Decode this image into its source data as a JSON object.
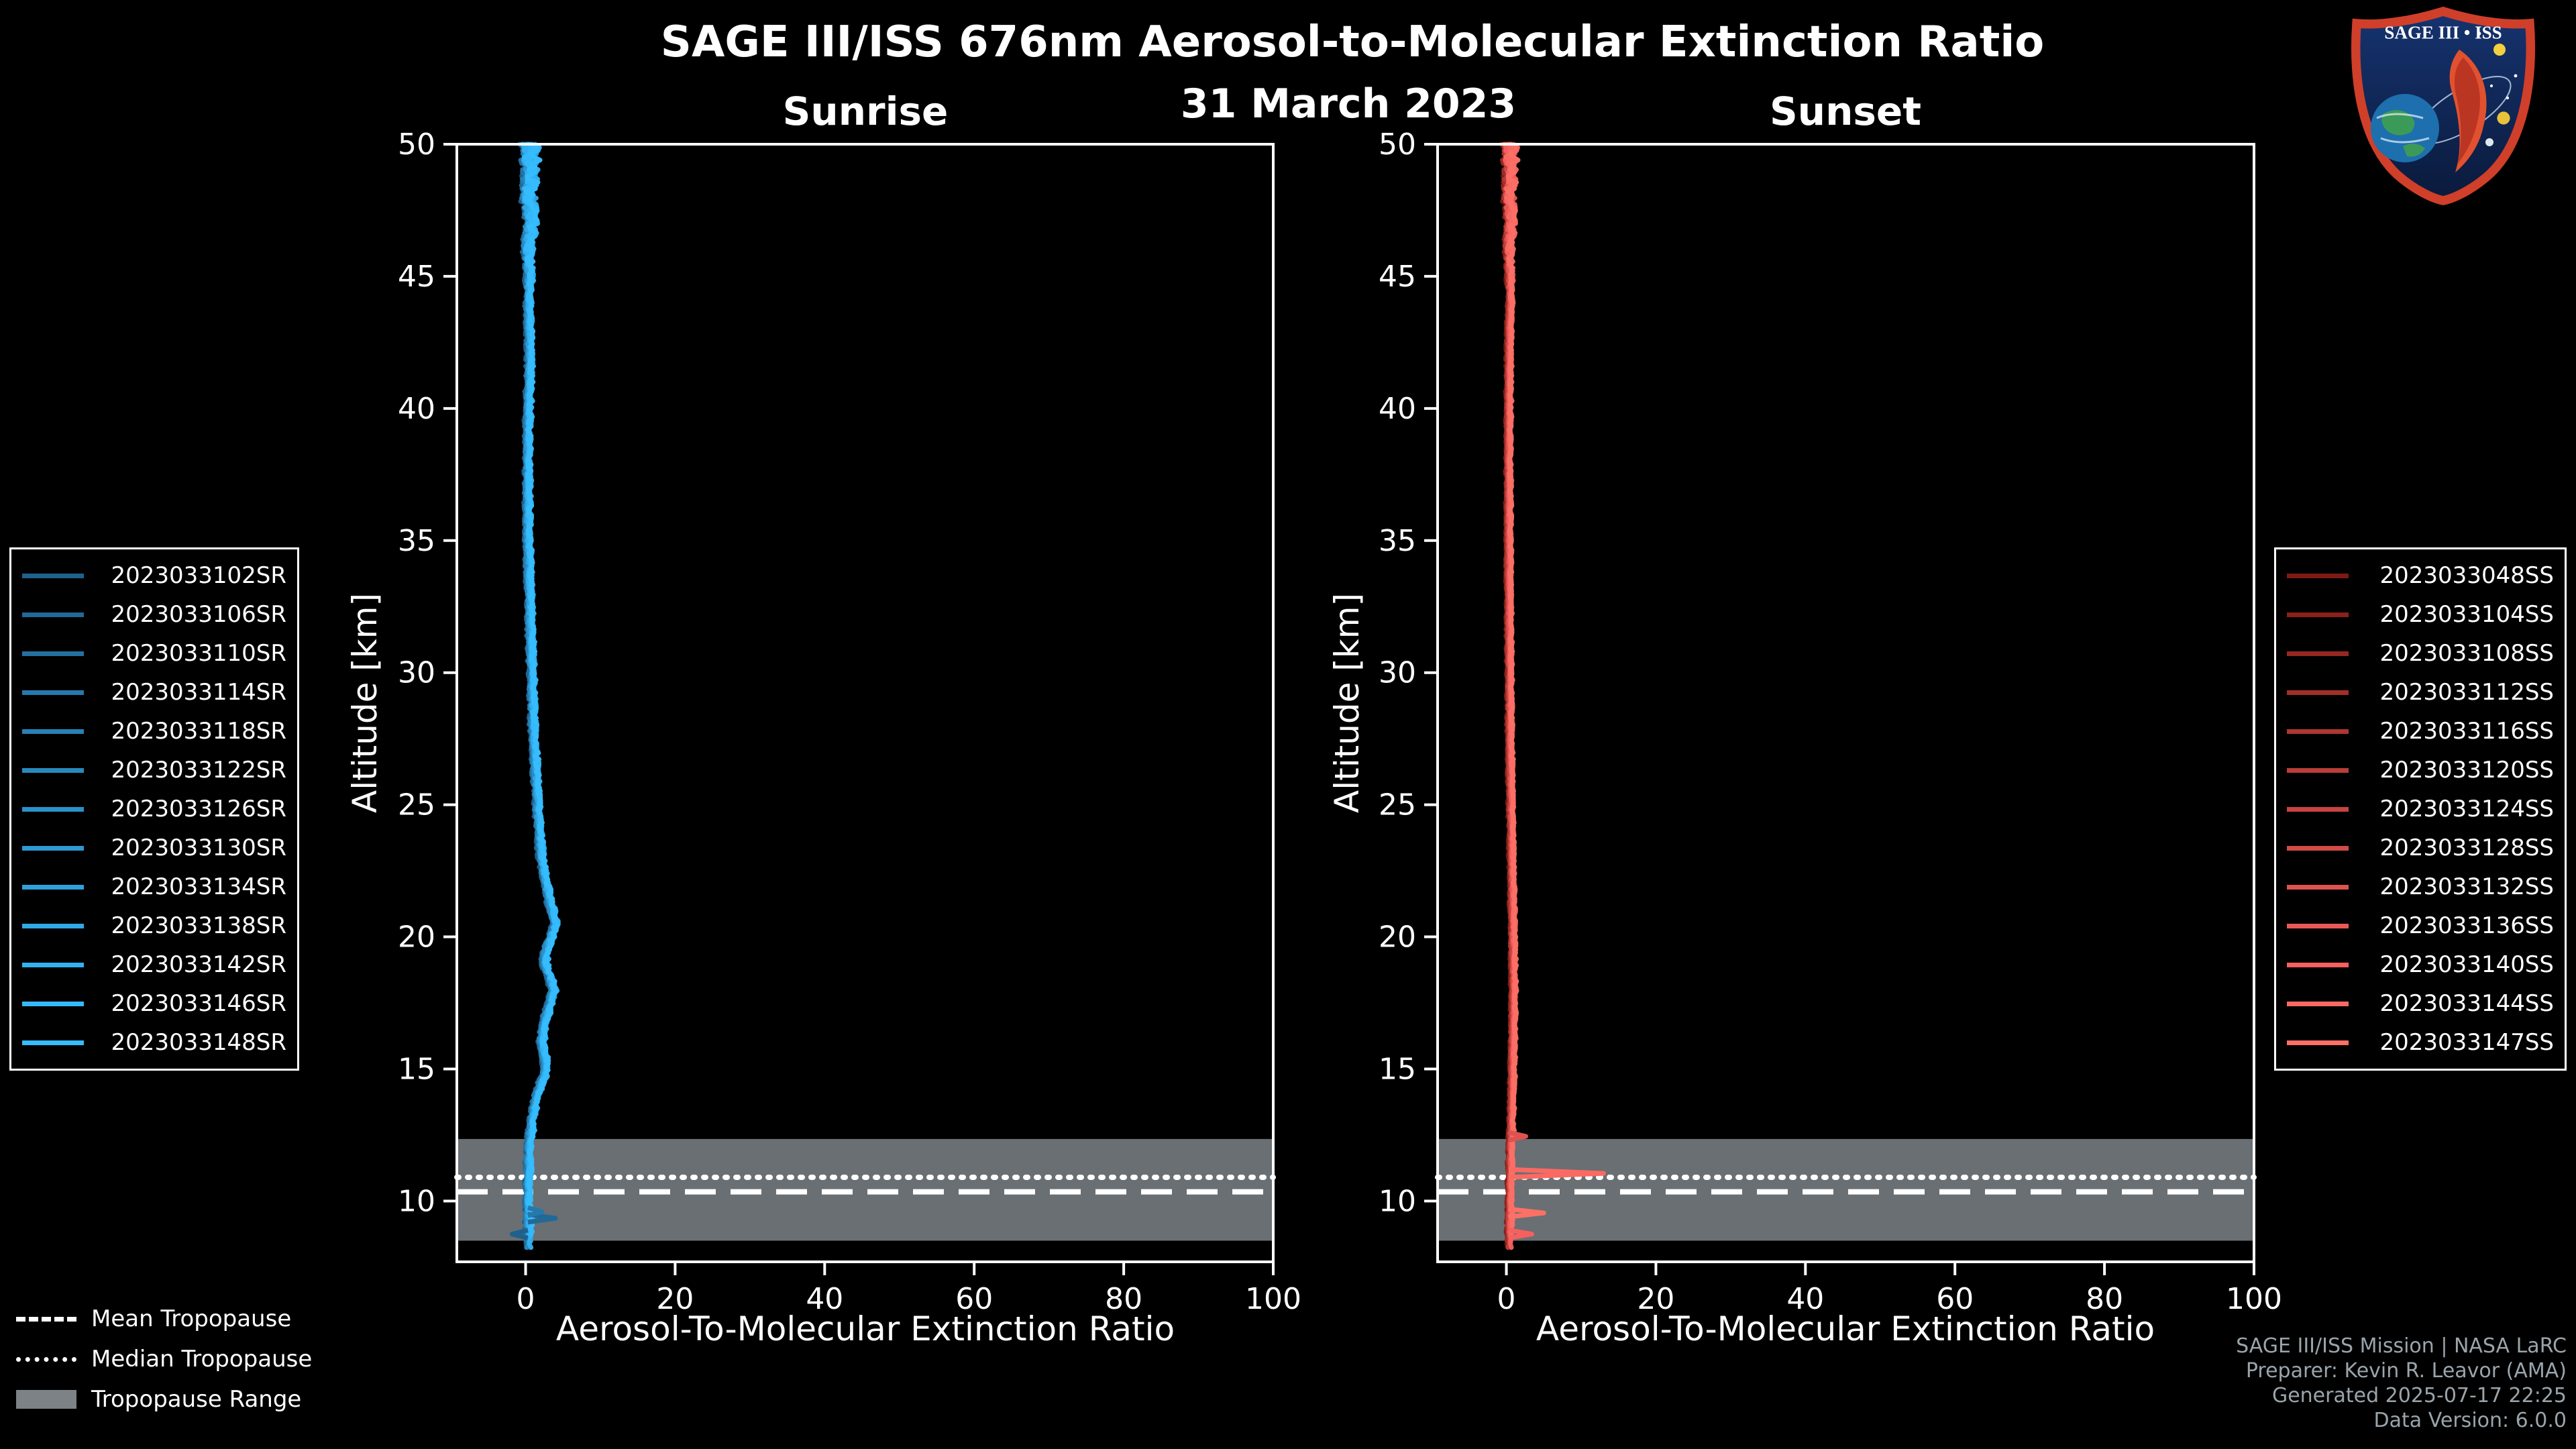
{
  "header": {
    "title": "SAGE III/ISS 676nm Aerosol-to-Molecular Extinction Ratio",
    "date": "31 March 2023"
  },
  "logo": {
    "title": "SAGE III • ISS"
  },
  "tropopause_legend": {
    "mean_label": "Mean Tropopause",
    "median_label": "Median Tropopause",
    "range_label": "Tropopause Range"
  },
  "footer": {
    "line1": "SAGE III/ISS Mission | NASA LaRC",
    "line2": "Preparer: Kevin R. Leavor (AMA)",
    "line3": "Generated 2025-07-17 22:25",
    "line4": "Data Version: 6.0.0"
  },
  "chart_data": {
    "type": "line",
    "title": "SAGE III/ISS 676nm Aerosol-to-Molecular Extinction Ratio",
    "subtitle": "31 March 2023",
    "background": "#000000",
    "text_color": "#ffffff",
    "tropopause_color": "#7d8287",
    "tropopause": {
      "mean": 10.35,
      "median": 10.9,
      "range": [
        8.5,
        12.35
      ]
    },
    "panels": [
      {
        "title": "Sunrise",
        "xlabel": "Aerosol-To-Molecular Extinction Ratio",
        "ylabel": "Altitude [km]",
        "xlim": [
          -9.2,
          100
        ],
        "ylim": [
          7.7,
          50
        ],
        "xticks": [
          0,
          20,
          40,
          60,
          80,
          100
        ],
        "yticks": [
          10,
          15,
          20,
          25,
          30,
          35,
          40,
          45,
          50
        ],
        "legend_position": "outside-left",
        "grid": false,
        "series": [
          {
            "name": "2023033102SR",
            "color": "#1f618d"
          },
          {
            "name": "2023033106SR",
            "color": "#216997"
          },
          {
            "name": "2023033110SR",
            "color": "#2371a1"
          },
          {
            "name": "2023033114SR",
            "color": "#2579ab"
          },
          {
            "name": "2023033118SR",
            "color": "#2781b5"
          },
          {
            "name": "2023033122SR",
            "color": "#2989bf"
          },
          {
            "name": "2023033126SR",
            "color": "#2b91c9"
          },
          {
            "name": "2023033130SR",
            "color": "#2d99d3"
          },
          {
            "name": "2023033134SR",
            "color": "#2fa1dd"
          },
          {
            "name": "2023033138SR",
            "color": "#31a9e7"
          },
          {
            "name": "2023033142SR",
            "color": "#33b1f1"
          },
          {
            "name": "2023033146SR",
            "color": "#35b9fb"
          },
          {
            "name": "2023033148SR",
            "color": "#36bdff"
          }
        ],
        "base_profile": [
          [
            50,
            0.5
          ],
          [
            49,
            0.7
          ],
          [
            48,
            0.4
          ],
          [
            47,
            0.7
          ],
          [
            46,
            0.3
          ],
          [
            45,
            0.5
          ],
          [
            44,
            0.35
          ],
          [
            43,
            0.5
          ],
          [
            42,
            0.55
          ],
          [
            41,
            0.45
          ],
          [
            40,
            0.35
          ],
          [
            39,
            0.3
          ],
          [
            38,
            0.3
          ],
          [
            37,
            0.25
          ],
          [
            36,
            0.3
          ],
          [
            35,
            0.3
          ],
          [
            34,
            0.4
          ],
          [
            33,
            0.5
          ],
          [
            32,
            0.6
          ],
          [
            31,
            0.7
          ],
          [
            30,
            0.8
          ],
          [
            29,
            0.9
          ],
          [
            28,
            1.0
          ],
          [
            27,
            1.2
          ],
          [
            26,
            1.4
          ],
          [
            25,
            1.6
          ],
          [
            24,
            1.8
          ],
          [
            23,
            2.1
          ],
          [
            22,
            2.7
          ],
          [
            21.5,
            3.1
          ],
          [
            21,
            3.5
          ],
          [
            20.5,
            3.9
          ],
          [
            20,
            3.4
          ],
          [
            19.5,
            2.7
          ],
          [
            19,
            2.5
          ],
          [
            18.5,
            3.2
          ],
          [
            18,
            3.7
          ],
          [
            17.5,
            3.3
          ],
          [
            17,
            2.7
          ],
          [
            16.5,
            2.3
          ],
          [
            16,
            2.1
          ],
          [
            15.5,
            2.5
          ],
          [
            15,
            2.7
          ],
          [
            14.5,
            2.1
          ],
          [
            14,
            1.5
          ],
          [
            13.5,
            1.1
          ],
          [
            13,
            0.8
          ],
          [
            12.5,
            0.6
          ],
          [
            12,
            0.45
          ],
          [
            11,
            0.35
          ],
          [
            10,
            0.3
          ],
          [
            9,
            0.4
          ],
          [
            8.2,
            0.4
          ]
        ],
        "noise": {
          "base": 0.28,
          "top_extra": 0.9
        },
        "spikes": [
          {
            "series": 1,
            "altitude": 9.35,
            "value": 4.0
          },
          {
            "series": 0,
            "altitude": 8.75,
            "value": -1.8
          },
          {
            "series": 3,
            "altitude": 9.6,
            "value": 2.2
          }
        ]
      },
      {
        "title": "Sunset",
        "xlabel": "Aerosol-To-Molecular Extinction Ratio",
        "ylabel": "Altitude [km]",
        "xlim": [
          -9.2,
          100
        ],
        "ylim": [
          7.7,
          50
        ],
        "xticks": [
          0,
          20,
          40,
          60,
          80,
          100
        ],
        "yticks": [
          10,
          15,
          20,
          25,
          30,
          35,
          40,
          45,
          50
        ],
        "legend_position": "outside-right",
        "grid": false,
        "series": [
          {
            "name": "2023033048SS",
            "color": "#7e1a12"
          },
          {
            "name": "2023033104SS",
            "color": "#8a211a"
          },
          {
            "name": "2023033108SS",
            "color": "#962821"
          },
          {
            "name": "2023033112SS",
            "color": "#a22f29"
          },
          {
            "name": "2023033116SS",
            "color": "#ae3630"
          },
          {
            "name": "2023033120SS",
            "color": "#ba3d38"
          },
          {
            "name": "2023033124SS",
            "color": "#c64440"
          },
          {
            "name": "2023033128SS",
            "color": "#d24b47"
          },
          {
            "name": "2023033132SS",
            "color": "#de524f"
          },
          {
            "name": "2023033136SS",
            "color": "#ea5956"
          },
          {
            "name": "2023033140SS",
            "color": "#f6605e"
          },
          {
            "name": "2023033144SS",
            "color": "#fa6a62"
          },
          {
            "name": "2023033147SS",
            "color": "#fc7066"
          }
        ],
        "base_profile": [
          [
            50,
            0.4
          ],
          [
            49,
            0.55
          ],
          [
            48,
            0.35
          ],
          [
            47,
            0.5
          ],
          [
            46,
            0.3
          ],
          [
            45,
            0.45
          ],
          [
            44,
            0.5
          ],
          [
            43,
            0.4
          ],
          [
            42,
            0.35
          ],
          [
            41,
            0.3
          ],
          [
            40,
            0.3
          ],
          [
            38,
            0.28
          ],
          [
            36,
            0.3
          ],
          [
            34,
            0.3
          ],
          [
            32,
            0.35
          ],
          [
            30,
            0.4
          ],
          [
            28,
            0.45
          ],
          [
            26,
            0.55
          ],
          [
            24,
            0.65
          ],
          [
            22,
            0.75
          ],
          [
            20,
            0.85
          ],
          [
            19,
            0.9
          ],
          [
            18,
            0.95
          ],
          [
            17,
            0.9
          ],
          [
            16,
            0.85
          ],
          [
            15,
            0.8
          ],
          [
            14,
            0.75
          ],
          [
            13,
            0.65
          ],
          [
            12,
            0.55
          ],
          [
            11,
            0.5
          ],
          [
            10,
            0.45
          ],
          [
            9,
            0.4
          ],
          [
            8.3,
            0.4
          ]
        ],
        "noise": {
          "base": 0.16,
          "top_extra": 0.75
        },
        "spikes": [
          {
            "series": 11,
            "altitude": 11.05,
            "value": 13.0
          },
          {
            "series": 8,
            "altitude": 12.45,
            "value": 2.6
          },
          {
            "series": 12,
            "altitude": 9.55,
            "value": 5.0
          },
          {
            "series": 10,
            "altitude": 8.75,
            "value": 3.4
          }
        ]
      }
    ]
  }
}
